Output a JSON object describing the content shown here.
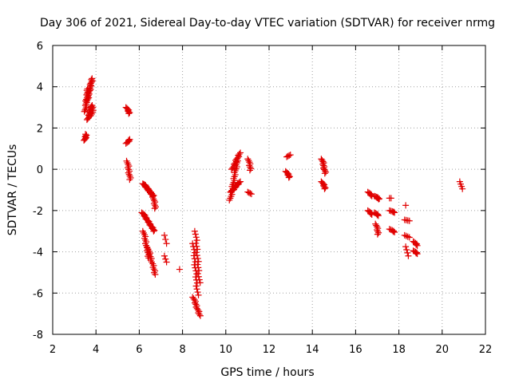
{
  "chart_data": {
    "type": "scatter",
    "title": "Day 306 of 2021, Sidereal Day-to-day VTEC variation (SDTVAR) for receiver nrmg",
    "xlabel": "GPS time / hours",
    "ylabel": "SDTVAR / TECUs",
    "xlim": [
      2,
      22
    ],
    "ylim": [
      -8,
      6
    ],
    "xticks": [
      2,
      4,
      6,
      8,
      10,
      12,
      14,
      16,
      18,
      20,
      22
    ],
    "yticks": [
      -8,
      -6,
      -4,
      -2,
      0,
      2,
      4,
      6
    ],
    "grid": true,
    "marker": "+",
    "color": "#e00000",
    "segments": [
      {
        "x0": 3.48,
        "x1": 3.55,
        "y0": 1.4,
        "y1": 1.7,
        "n": 8
      },
      {
        "x0": 3.5,
        "x1": 3.62,
        "y0": 2.8,
        "y1": 3.9,
        "n": 16
      },
      {
        "x0": 3.6,
        "x1": 3.82,
        "y0": 3.3,
        "y1": 4.4,
        "n": 20
      },
      {
        "x0": 3.62,
        "x1": 3.8,
        "y0": 2.4,
        "y1": 3.1,
        "n": 14
      },
      {
        "x0": 3.8,
        "x1": 3.86,
        "y0": 2.6,
        "y1": 3.0,
        "n": 6
      },
      {
        "x0": 5.42,
        "x1": 5.55,
        "y0": 3.0,
        "y1": 2.7,
        "n": 8
      },
      {
        "x0": 5.42,
        "x1": 5.56,
        "y0": 1.25,
        "y1": 1.45,
        "n": 6
      },
      {
        "x0": 5.45,
        "x1": 5.58,
        "y0": 0.4,
        "y1": -0.5,
        "n": 12
      },
      {
        "x0": 6.2,
        "x1": 6.65,
        "y0": -0.7,
        "y1": -1.3,
        "n": 26
      },
      {
        "x0": 6.65,
        "x1": 6.75,
        "y0": -1.35,
        "y1": -1.9,
        "n": 8
      },
      {
        "x0": 6.15,
        "x1": 6.7,
        "y0": -2.1,
        "y1": -3.0,
        "n": 22
      },
      {
        "x0": 6.2,
        "x1": 6.45,
        "y0": -3.0,
        "y1": -4.3,
        "n": 16
      },
      {
        "x0": 6.4,
        "x1": 6.75,
        "y0": -3.8,
        "y1": -5.1,
        "n": 16
      },
      {
        "x0": 7.2,
        "x1": 7.25,
        "y0": -3.2,
        "y1": -3.6,
        "n": 3
      },
      {
        "x0": 7.2,
        "x1": 7.25,
        "y0": -4.2,
        "y1": -4.5,
        "n": 3
      },
      {
        "x0": 7.9,
        "x1": 7.9,
        "y0": -4.85,
        "y1": -4.85,
        "n": 1
      },
      {
        "x0": 8.5,
        "x1": 8.7,
        "y0": -3.6,
        "y1": -6.1,
        "n": 18
      },
      {
        "x0": 8.6,
        "x1": 8.78,
        "y0": -3.0,
        "y1": -5.5,
        "n": 18
      },
      {
        "x0": 8.5,
        "x1": 8.8,
        "y0": -6.2,
        "y1": -7.1,
        "n": 14
      },
      {
        "x0": 10.2,
        "x1": 10.55,
        "y0": -1.5,
        "y1": 0.5,
        "n": 22
      },
      {
        "x0": 10.3,
        "x1": 10.65,
        "y0": 0.0,
        "y1": 0.8,
        "n": 14
      },
      {
        "x0": 10.25,
        "x1": 10.65,
        "y0": -1.1,
        "y1": -0.6,
        "n": 14
      },
      {
        "x0": 11.05,
        "x1": 11.15,
        "y0": 0.5,
        "y1": -0.05,
        "n": 8
      },
      {
        "x0": 11.05,
        "x1": 11.15,
        "y0": -1.1,
        "y1": -1.2,
        "n": 4
      },
      {
        "x0": 12.85,
        "x1": 12.95,
        "y0": 0.6,
        "y1": 0.7,
        "n": 4
      },
      {
        "x0": 12.8,
        "x1": 12.95,
        "y0": -0.1,
        "y1": -0.4,
        "n": 8
      },
      {
        "x0": 14.45,
        "x1": 14.6,
        "y0": 0.5,
        "y1": -0.2,
        "n": 12
      },
      {
        "x0": 14.45,
        "x1": 14.6,
        "y0": -0.6,
        "y1": -0.95,
        "n": 8
      },
      {
        "x0": 16.6,
        "x1": 16.75,
        "y0": -1.1,
        "y1": -1.3,
        "n": 6
      },
      {
        "x0": 16.6,
        "x1": 16.75,
        "y0": -2.0,
        "y1": -2.2,
        "n": 6
      },
      {
        "x0": 16.9,
        "x1": 17.1,
        "y0": -1.3,
        "y1": -1.45,
        "n": 8
      },
      {
        "x0": 16.9,
        "x1": 17.05,
        "y0": -2.1,
        "y1": -2.25,
        "n": 6
      },
      {
        "x0": 16.95,
        "x1": 17.05,
        "y0": -2.65,
        "y1": -3.15,
        "n": 8
      },
      {
        "x0": 17.6,
        "x1": 17.65,
        "y0": -1.4,
        "y1": -1.4,
        "n": 2
      },
      {
        "x0": 17.6,
        "x1": 17.8,
        "y0": -2.0,
        "y1": -2.1,
        "n": 6
      },
      {
        "x0": 17.6,
        "x1": 17.8,
        "y0": -2.9,
        "y1": -3.05,
        "n": 6
      },
      {
        "x0": 18.35,
        "x1": 18.4,
        "y0": -1.75,
        "y1": -1.75,
        "n": 1
      },
      {
        "x0": 18.3,
        "x1": 18.45,
        "y0": -2.45,
        "y1": -2.5,
        "n": 4
      },
      {
        "x0": 18.3,
        "x1": 18.45,
        "y0": -3.2,
        "y1": -3.3,
        "n": 4
      },
      {
        "x0": 18.35,
        "x1": 18.4,
        "y0": -3.75,
        "y1": -4.2,
        "n": 4
      },
      {
        "x0": 18.7,
        "x1": 18.85,
        "y0": -3.5,
        "y1": -3.7,
        "n": 6
      },
      {
        "x0": 18.7,
        "x1": 18.85,
        "y0": -3.95,
        "y1": -4.1,
        "n": 6
      },
      {
        "x0": 20.85,
        "x1": 20.9,
        "y0": -0.6,
        "y1": -0.95,
        "n": 4
      }
    ]
  }
}
